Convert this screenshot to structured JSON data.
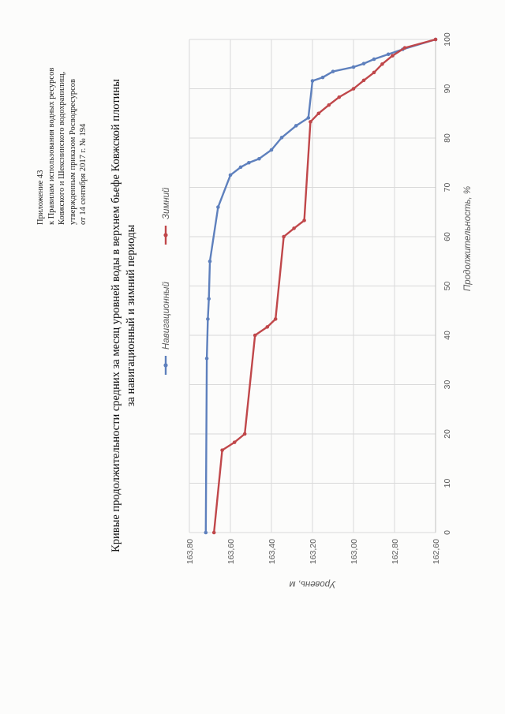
{
  "header": {
    "line1": "Приложение 43",
    "line2": "к Правилам использования водных ресурсов",
    "line3": "Ковжского и Шекснинского водохранилищ,",
    "line4": "утвержденным приказом Росводресурсов",
    "line5": "от 14 сентября 2017 г. № 194"
  },
  "title": {
    "line1": "Кривые продолжительности средних за месяц уровней воды в верхнем бьефе Ковжской плотины",
    "line2": "за навигационный и зимний периоды"
  },
  "colors": {
    "nav": "#5e80bd",
    "winter": "#c0474a",
    "grid": "#d9d9d9",
    "axis": "#595959"
  },
  "chart_data": {
    "type": "line",
    "title": "Кривые продолжительности средних за месяц уровней воды в верхнем бьефе Ковжской плотины за навигационный и зимний периоды",
    "xlabel": "Продолжительность, %",
    "ylabel": "Уровень, м",
    "xlim": [
      0,
      100
    ],
    "ylim": [
      162.6,
      163.8
    ],
    "x_ticks": [
      0,
      10,
      20,
      30,
      40,
      50,
      60,
      70,
      80,
      90,
      100
    ],
    "x_tick_labels": [
      "0",
      "10",
      "20",
      "30",
      "40",
      "50",
      "60",
      "70",
      "80",
      "90",
      "100"
    ],
    "y_ticks": [
      162.6,
      162.8,
      163.0,
      163.2,
      163.4,
      163.6,
      163.8
    ],
    "y_tick_labels": [
      "162,60",
      "162,80",
      "163,00",
      "163,20",
      "163,40",
      "163,60",
      "163,80"
    ],
    "grid": true,
    "legend_position": "top",
    "series": [
      {
        "name": "Навигационный",
        "color": "#5e80bd",
        "x": [
          0,
          35.3,
          43.3,
          47.4,
          55,
          66,
          72.5,
          74.1,
          75,
          75.8,
          77.6,
          80.1,
          82.5,
          84.1,
          91.6,
          92.3,
          93.5,
          94.4,
          95.1,
          96,
          97,
          98,
          100
        ],
        "y": [
          163.72,
          163.715,
          163.71,
          163.705,
          163.7,
          163.66,
          163.6,
          163.55,
          163.51,
          163.46,
          163.4,
          163.35,
          163.28,
          163.22,
          163.2,
          163.15,
          163.1,
          163.0,
          162.95,
          162.9,
          162.83,
          162.76,
          162.6
        ]
      },
      {
        "name": "Зимний",
        "color": "#c0474a",
        "x": [
          0,
          16.7,
          18.3,
          20,
          40,
          41.7,
          43.3,
          60,
          61.7,
          63.3,
          83.3,
          85,
          86.7,
          88.3,
          90,
          91.7,
          93.3,
          95,
          96.7,
          98.3,
          100
        ],
        "y": [
          163.68,
          163.64,
          163.58,
          163.53,
          163.48,
          163.42,
          163.38,
          163.34,
          163.29,
          163.24,
          163.21,
          163.17,
          163.12,
          163.07,
          163.0,
          162.95,
          162.9,
          162.86,
          162.81,
          162.75,
          162.6
        ]
      }
    ]
  }
}
